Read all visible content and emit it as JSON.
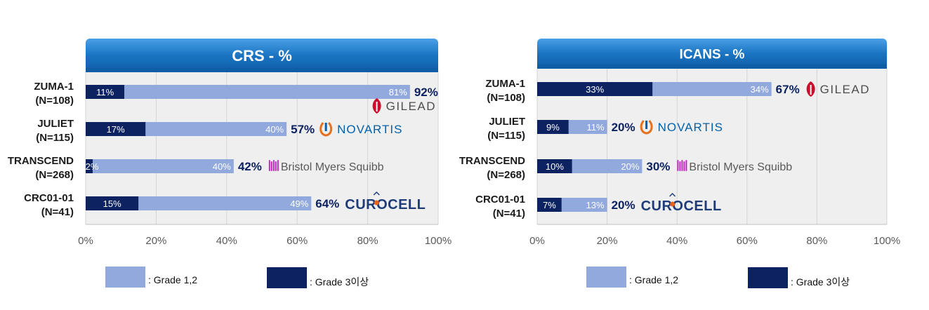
{
  "chart_data": [
    {
      "type": "bar",
      "stacked": true,
      "orientation": "horizontal",
      "title": "CRS - %",
      "categories": [
        "ZUMA-1\n(N=108)",
        "JULIET\n(N=115)",
        "TRANSCEND\n(N=268)",
        "CRC01-01\n(N=41)"
      ],
      "series": [
        {
          "name": ": Grade 3이상",
          "values": [
            11,
            17,
            2,
            15
          ],
          "labels": [
            "11%",
            "17%",
            "2%",
            "15%"
          ],
          "color": "#0d2260"
        },
        {
          "name": ": Grade 1,2",
          "values": [
            81,
            40,
            40,
            49
          ],
          "labels": [
            "81%",
            "40%",
            "40%",
            "49%"
          ],
          "color": "#92a9de"
        }
      ],
      "totals": [
        "92%",
        "57%",
        "42%",
        "64%"
      ],
      "logos": [
        "GILEAD",
        "NOVARTIS",
        "Bristol Myers Squibb",
        "CUROCELL"
      ],
      "xlim": [
        0,
        100
      ],
      "xticks": [
        "0%",
        "20%",
        "40%",
        "60%",
        "80%",
        "100%"
      ],
      "grid": true
    },
    {
      "type": "bar",
      "stacked": true,
      "orientation": "horizontal",
      "title": "ICANS - %",
      "categories": [
        "ZUMA-1\n(N=108)",
        "JULIET\n(N=115)",
        "TRANSCEND\n(N=268)",
        "CRC01-01\n(N=41)"
      ],
      "series": [
        {
          "name": ": Grade 3이상",
          "values": [
            33,
            9,
            10,
            7
          ],
          "labels": [
            "33%",
            "9%",
            "10%",
            "7%"
          ],
          "color": "#0d2260"
        },
        {
          "name": ": Grade 1,2",
          "values": [
            34,
            11,
            20,
            13
          ],
          "labels": [
            "34%",
            "11%",
            "20%",
            "13%"
          ],
          "color": "#92a9de"
        }
      ],
      "totals": [
        "67%",
        "20%",
        "30%",
        "20%"
      ],
      "logos": [
        "GILEAD",
        "NOVARTIS",
        "Bristol Myers Squibb",
        "CUROCELL"
      ],
      "xlim": [
        0,
        100
      ],
      "xticks": [
        "0%",
        "20%",
        "40%",
        "60%",
        "80%",
        "100%"
      ],
      "grid": true
    }
  ],
  "legend": {
    "grade12": ": Grade 1,2",
    "grade3": ": Grade 3이상"
  },
  "colors": {
    "grade12": "#92a9de",
    "grade3": "#0d2260",
    "total_text": "#0d2260",
    "title_band": "#1a74c2",
    "plot_bg": "#efefef"
  }
}
